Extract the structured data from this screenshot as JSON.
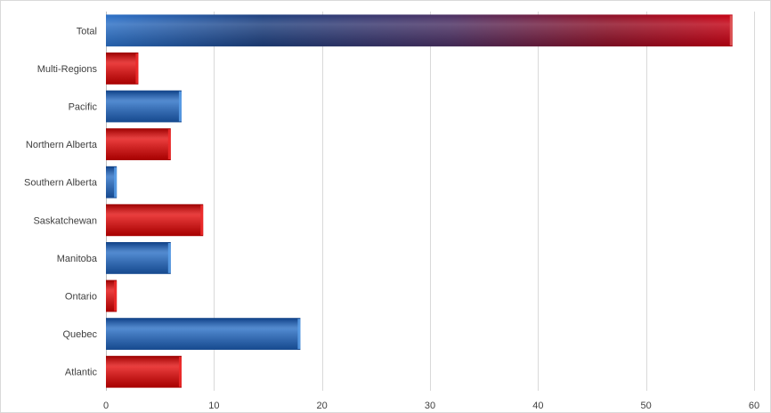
{
  "chart_data": {
    "type": "bar",
    "orientation": "horizontal",
    "title": "",
    "xlabel": "",
    "ylabel": "",
    "categories": [
      "Total",
      "Multi-Regions",
      "Pacific",
      "Northern Alberta",
      "Southern Alberta",
      "Saskatchewan",
      "Manitoba",
      "Ontario",
      "Quebec",
      "Atlantic"
    ],
    "values": [
      58,
      3,
      7,
      6,
      1,
      9,
      6,
      1,
      18,
      7
    ],
    "bar_colors": [
      "gradient-blue-red",
      "red",
      "blue",
      "red",
      "blue",
      "red",
      "blue",
      "red",
      "blue",
      "red"
    ],
    "xlim": [
      0,
      60
    ],
    "xticks": [
      0,
      10,
      20,
      30,
      40,
      50,
      60
    ],
    "grid": true,
    "legend": "none",
    "colors": {
      "blue": "#1f5fb0",
      "blue_light": "#5aa0ea",
      "red": "#cc0000",
      "red_light": "#ee2a2a"
    }
  }
}
